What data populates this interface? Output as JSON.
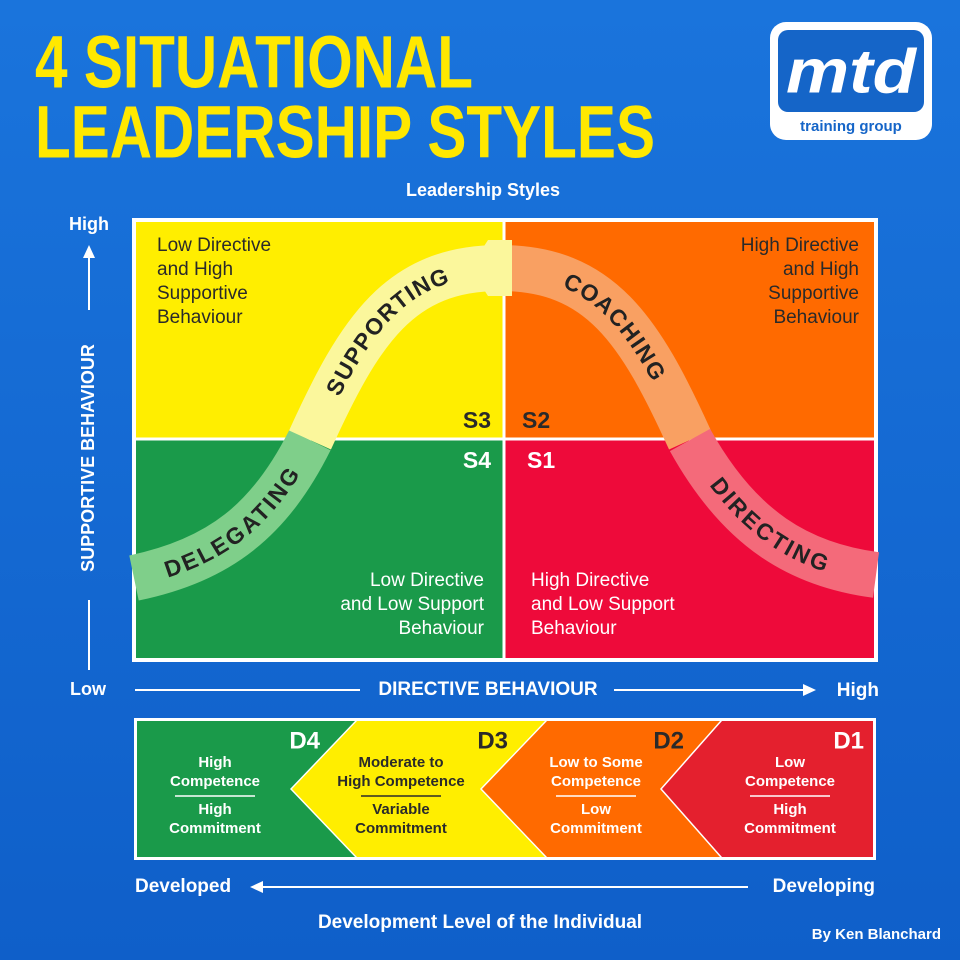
{
  "header": {
    "title_line1": "4 SITUATIONAL",
    "title_line2": "LEADERSHIP STYLES"
  },
  "logo": {
    "mark": "mtd",
    "tagline": "training group"
  },
  "matrix": {
    "title": "Leadership Styles",
    "y_axis": {
      "label": "SUPPORTIVE BEHAVIOUR",
      "high": "High",
      "low": "Low"
    },
    "x_axis": {
      "label": "DIRECTIVE BEHAVIOUR",
      "high": "High"
    },
    "quadrants": [
      {
        "code": "S3",
        "style": "SUPPORTING",
        "description": [
          "Low Directive",
          "and High",
          "Supportive",
          "Behaviour"
        ]
      },
      {
        "code": "S2",
        "style": "COACHING",
        "description": [
          "High Directive",
          "and High",
          "Supportive",
          "Behaviour"
        ]
      },
      {
        "code": "S4",
        "style": "DELEGATING",
        "description": [
          "Low Directive",
          "and Low Support",
          "Behaviour"
        ]
      },
      {
        "code": "S1",
        "style": "DIRECTING",
        "description": [
          "High Directive",
          "and Low Support",
          "Behaviour"
        ]
      }
    ]
  },
  "development": {
    "levels": [
      {
        "code": "D4",
        "competence": [
          "High",
          "Competence"
        ],
        "commitment": [
          "High",
          "Commitment"
        ]
      },
      {
        "code": "D3",
        "competence": [
          "Moderate to",
          "High Competence"
        ],
        "commitment": [
          "Variable",
          "Commitment"
        ]
      },
      {
        "code": "D2",
        "competence": [
          "Low to Some",
          "Competence"
        ],
        "commitment": [
          "Low",
          "Commitment"
        ]
      },
      {
        "code": "D1",
        "competence": [
          "Low",
          "Competence"
        ],
        "commitment": [
          "High",
          "Commitment"
        ]
      }
    ],
    "left_label": "Developed",
    "right_label": "Developing",
    "caption": "Development Level of the Individual"
  },
  "credit": "By Ken Blanchard"
}
